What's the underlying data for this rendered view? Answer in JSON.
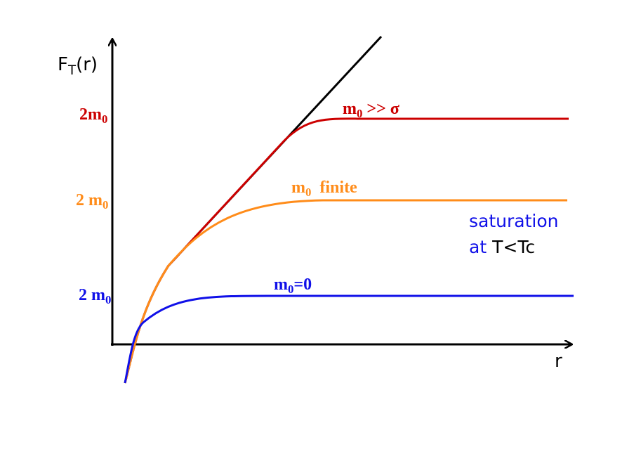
{
  "y_label": {
    "main": "F",
    "sub": "T",
    "tail": "(r)"
  },
  "x_label": "r",
  "levels": [
    {
      "main": "2m",
      "sub": "0"
    },
    {
      "main": "2 m",
      "sub": "0"
    },
    {
      "main": "2 m",
      "sub": "0"
    }
  ],
  "curves": [
    {
      "main": "m",
      "sub": "0",
      "tail": " >> σ"
    },
    {
      "main": "m",
      "sub": "0",
      "tail": "  finite"
    },
    {
      "main": "m",
      "sub": "0",
      "tail": "=0"
    }
  ],
  "note": {
    "line1": "saturation",
    "line2_a": "at",
    "line2_b": "T<Tc"
  }
}
